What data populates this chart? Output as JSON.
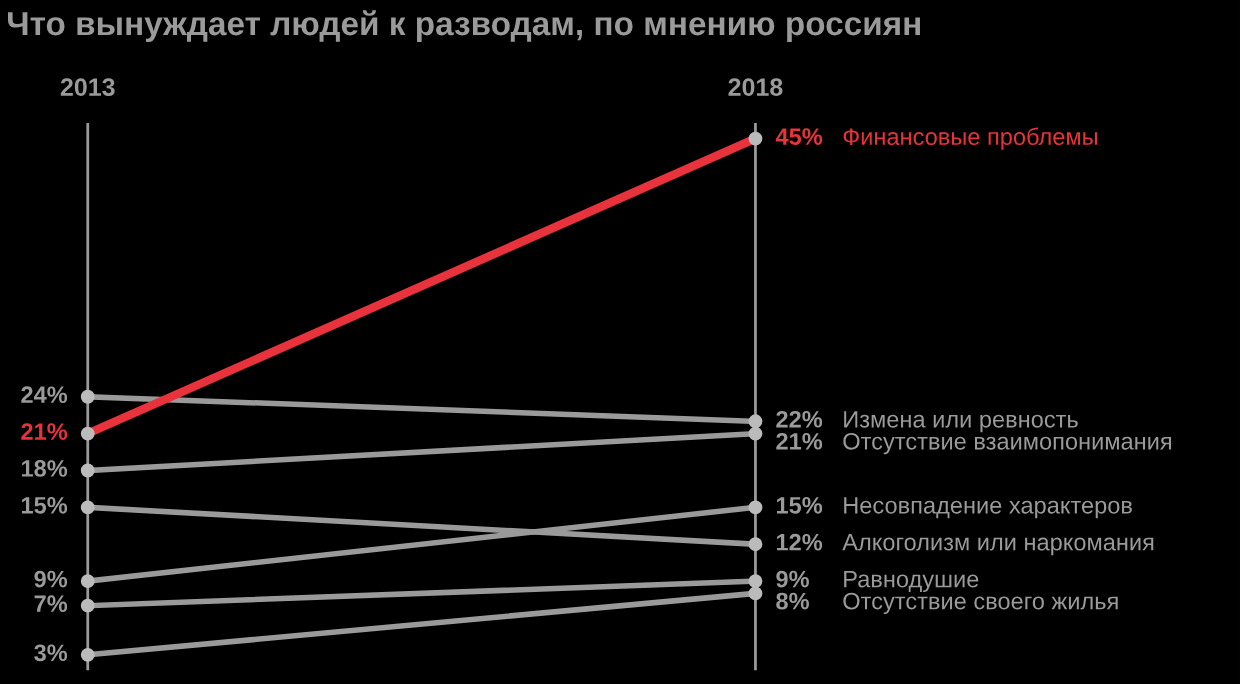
{
  "chart_data": {
    "type": "line",
    "title": "Что вынуждает людей к разводам, по мнению россиян",
    "categories": [
      "2013",
      "2018"
    ],
    "series": [
      {
        "name": "Финансовые проблемы",
        "color": "#e8333c",
        "values": [
          21,
          45
        ],
        "value_labels": [
          "21%",
          "45%"
        ]
      },
      {
        "name": "Измена или ревность",
        "color": "#9a9a9a",
        "values": [
          24,
          22
        ],
        "value_labels": [
          "24%",
          "22%"
        ]
      },
      {
        "name": "Отсутствие взаимопонимания",
        "color": "#9a9a9a",
        "values": [
          18,
          21
        ],
        "value_labels": [
          "18%",
          "21%"
        ]
      },
      {
        "name": "Несовпадение характеров",
        "color": "#9a9a9a",
        "values": [
          9,
          15
        ],
        "value_labels": [
          "9%",
          "15%"
        ]
      },
      {
        "name": "Алкоголизм или наркомания",
        "color": "#9a9a9a",
        "values": [
          15,
          12
        ],
        "value_labels": [
          "15%",
          "12%"
        ]
      },
      {
        "name": "Равнодушие",
        "color": "#9a9a9a",
        "values": [
          7,
          9
        ],
        "value_labels": [
          "7%",
          "9%"
        ]
      },
      {
        "name": "Отсутствие своего жилья",
        "color": "#9a9a9a",
        "values": [
          3,
          8
        ],
        "value_labels": [
          "3%",
          "8%"
        ]
      }
    ],
    "tick_labels": "x",
    "grid": "x",
    "marker": "circle",
    "line_style": "solid",
    "legend": false
  }
}
